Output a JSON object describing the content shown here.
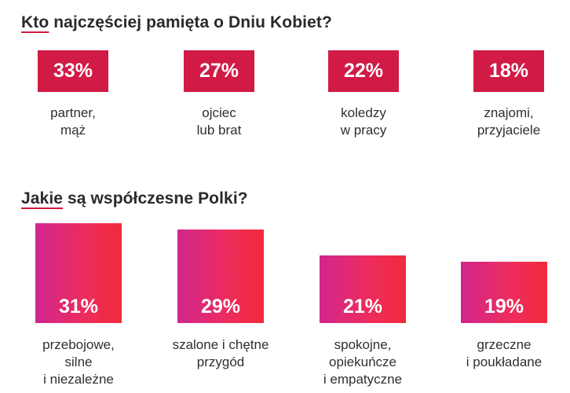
{
  "section1": {
    "heading_first": "Kto",
    "heading_rest": " najczęściej pamięta o Dniu Kobiet?",
    "items": [
      {
        "value": "33%",
        "label": "partner,\nmąż"
      },
      {
        "value": "27%",
        "label": "ojciec\nlub brat"
      },
      {
        "value": "22%",
        "label": "koledzy\nw pracy"
      },
      {
        "value": "18%",
        "label": "znajomi,\nprzyjaciele"
      }
    ]
  },
  "section2": {
    "heading_first": "Jakie",
    "heading_rest": " są współczesne Polki?",
    "items": [
      {
        "value": "31%",
        "label": "przebojowe,\nsilne\ni niezależne"
      },
      {
        "value": "29%",
        "label": "szalone i chętne\nprzygód"
      },
      {
        "value": "21%",
        "label": "spokojne,\nopiekuńcze\ni empatyczne"
      },
      {
        "value": "19%",
        "label": "grzeczne\ni poukładane"
      }
    ]
  },
  "colors": {
    "badge": "#d11a45",
    "accent_underline": "#d7193d",
    "bar_gradient_start": "#d0268e",
    "bar_gradient_end": "#f12a3a"
  },
  "chart_data": [
    {
      "type": "bar",
      "title": "Kto najczęściej pamięta o Dniu Kobiet?",
      "categories": [
        "partner, mąż",
        "ojciec lub brat",
        "koledzy w pracy",
        "znajomi, przyjaciele"
      ],
      "values": [
        33,
        27,
        22,
        18
      ],
      "unit": "%",
      "xlabel": "",
      "ylabel": ""
    },
    {
      "type": "bar",
      "title": "Jakie są współczesne Polki?",
      "categories": [
        "przebojowe, silne i niezależne",
        "szalone i chętne przygód",
        "spokojne, opiekuńcze i empatyczne",
        "grzeczne i poukładane"
      ],
      "values": [
        31,
        29,
        21,
        19
      ],
      "unit": "%",
      "xlabel": "",
      "ylabel": ""
    }
  ]
}
